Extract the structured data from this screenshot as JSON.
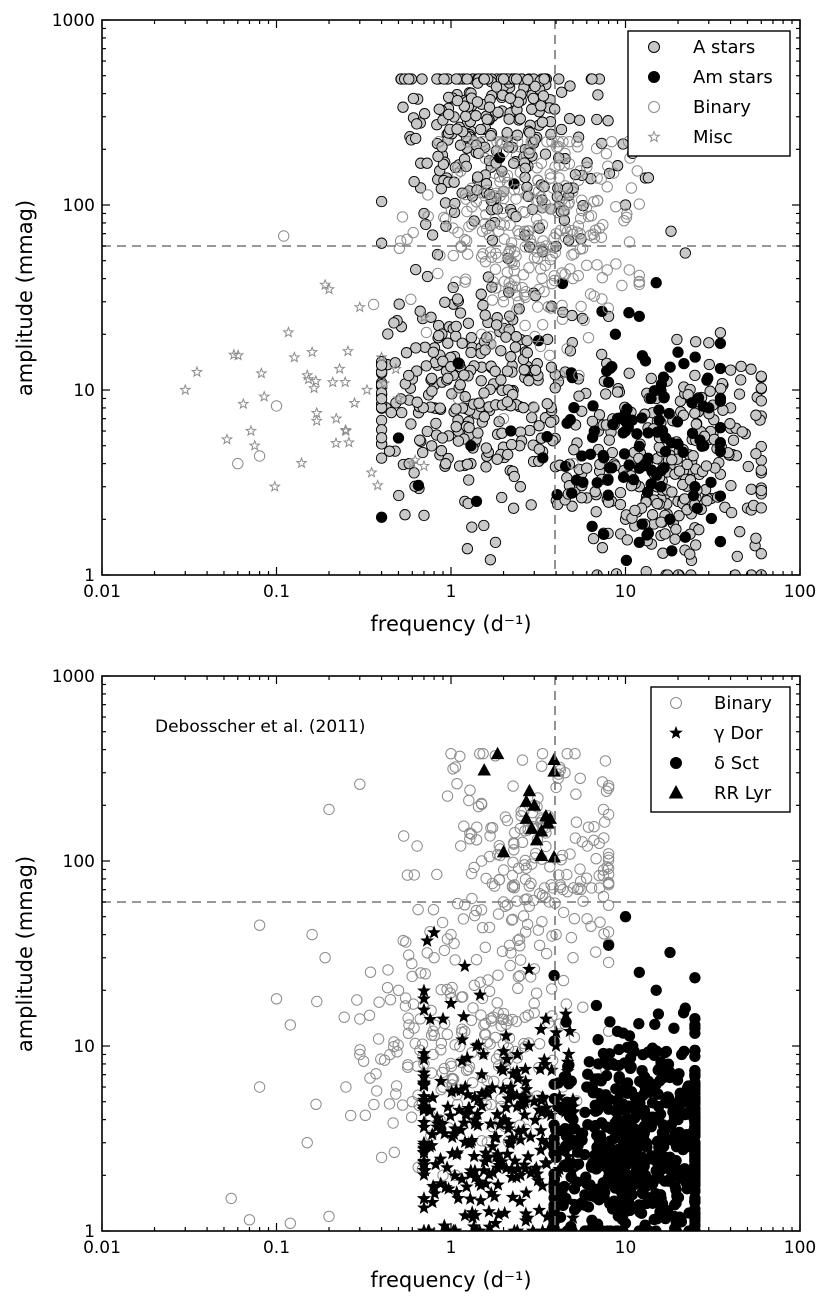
{
  "chart_data": [
    {
      "type": "scatter",
      "xscale": "log",
      "yscale": "log",
      "xlim": [
        0.01,
        100
      ],
      "ylim": [
        1,
        1000
      ],
      "xlabel": "frequency (d⁻¹)",
      "ylabel": "amplitude (mmag)",
      "x_ticks": [
        "0.01",
        "0.1",
        "1",
        "10",
        "100"
      ],
      "y_ticks": [
        "1",
        "10",
        "100",
        "1000"
      ],
      "ref_lines": {
        "vertical_x": 4.07,
        "horizontal_y": 60
      },
      "legend_position": "top-right",
      "annotation": "",
      "series": [
        {
          "name": "A stars",
          "marker": "circle",
          "fill": "#c8c8c8",
          "stroke": "#000000",
          "count_approx": 900,
          "x_range": [
            0.4,
            60
          ],
          "y_range": [
            1,
            480
          ],
          "cluster_centers": [
            [
              1.2,
              10
            ],
            [
              18,
              4
            ],
            [
              2,
              250
            ]
          ],
          "sample_points": [
            [
              2.0,
              480
            ],
            [
              2.0,
              420
            ],
            [
              1.5,
              350
            ],
            [
              1.6,
              300
            ],
            [
              1.3,
              250
            ],
            [
              3.2,
              270
            ],
            [
              1.7,
              160
            ],
            [
              11,
              190
            ],
            [
              13,
              140
            ],
            [
              0.7,
              90
            ],
            [
              10,
              100
            ],
            [
              0.52,
              22
            ],
            [
              0.6,
              12
            ],
            [
              1.0,
              15
            ],
            [
              0.8,
              8
            ],
            [
              1.1,
              6
            ],
            [
              1.3,
              4
            ],
            [
              2.5,
              3
            ],
            [
              0.7,
              2.1
            ],
            [
              1.2,
              2.5
            ],
            [
              1.8,
              1.5
            ],
            [
              12,
              3
            ],
            [
              20,
              2.5
            ],
            [
              35,
              3.5
            ],
            [
              50,
              2.3
            ],
            [
              15,
              9
            ],
            [
              25,
              12
            ],
            [
              8,
              25
            ],
            [
              30,
              18
            ],
            [
              22,
              55
            ],
            [
              40,
              8
            ],
            [
              7,
              6
            ],
            [
              10,
              2
            ],
            [
              25,
              1.8
            ],
            [
              45,
              9.5
            ]
          ]
        },
        {
          "name": "Am stars",
          "marker": "circle",
          "fill": "#000000",
          "stroke": "#000000",
          "count_approx": 130,
          "x_range": [
            0.4,
            35
          ],
          "y_range": [
            1.2,
            180
          ],
          "cluster_centers": [
            [
              14,
              5
            ]
          ],
          "sample_points": [
            [
              1.9,
              180
            ],
            [
              2.3,
              130
            ],
            [
              0.4,
              2.05
            ],
            [
              0.65,
              3.05
            ],
            [
              1.3,
              5
            ],
            [
              2.2,
              6
            ],
            [
              1.1,
              14
            ],
            [
              12,
              25
            ],
            [
              15,
              38
            ],
            [
              20,
              16
            ],
            [
              8,
              11
            ],
            [
              10,
              6
            ],
            [
              13,
              4
            ],
            [
              16,
              3
            ],
            [
              18,
              2
            ],
            [
              22,
              1.6
            ],
            [
              9,
              7
            ],
            [
              14,
              9
            ],
            [
              17,
              5.5
            ],
            [
              25,
              3
            ],
            [
              30,
              8
            ],
            [
              12,
              1.5
            ],
            [
              1.4,
              2.5
            ],
            [
              0.5,
              5.5
            ]
          ]
        },
        {
          "name": "Binary",
          "marker": "circle",
          "fill": "none",
          "stroke": "#8c8c8c",
          "count_approx": 300,
          "x_range": [
            0.06,
            12
          ],
          "y_range": [
            2,
            220
          ],
          "cluster_centers": [
            [
              3,
              80
            ]
          ],
          "sample_points": [
            [
              0.11,
              68
            ],
            [
              0.1,
              8.2
            ],
            [
              0.06,
              4
            ],
            [
              0.08,
              4.4
            ],
            [
              0.36,
              29
            ],
            [
              1.2,
              65
            ],
            [
              2.5,
              150
            ],
            [
              3.0,
              120
            ],
            [
              4.5,
              190
            ],
            [
              4,
              70
            ],
            [
              3.5,
              60
            ],
            [
              5,
              40
            ],
            [
              2,
              30
            ],
            [
              1.5,
              20
            ],
            [
              4.2,
              12
            ],
            [
              3,
              8
            ],
            [
              5,
              4
            ],
            [
              1.8,
              45
            ],
            [
              2.8,
              200
            ],
            [
              4.5,
              100
            ],
            [
              6,
              160
            ],
            [
              3.2,
              35
            ],
            [
              1.1,
              9
            ],
            [
              2,
              7
            ]
          ]
        },
        {
          "name": "Misc",
          "marker": "star",
          "fill": "none",
          "stroke": "#8c8c8c",
          "count_approx": 45,
          "x_range": [
            0.03,
            0.7
          ],
          "y_range": [
            3,
            38
          ],
          "cluster_centers": [
            [
              0.2,
              10
            ]
          ],
          "sample_points": [
            [
              0.03,
              10
            ],
            [
              0.035,
              12.5
            ],
            [
              0.052,
              5.4
            ],
            [
              0.057,
              15.5
            ],
            [
              0.075,
              5
            ],
            [
              0.085,
              9.2
            ],
            [
              0.16,
              16
            ],
            [
              0.17,
              7.5
            ],
            [
              0.19,
              37
            ],
            [
              0.2,
              35
            ],
            [
              0.21,
              11
            ],
            [
              0.22,
              7
            ],
            [
              0.25,
              6
            ],
            [
              0.3,
              28
            ],
            [
              0.33,
              10
            ],
            [
              0.38,
              3.05
            ],
            [
              0.15,
              12
            ],
            [
              0.23,
              13
            ],
            [
              0.26,
              5.2
            ],
            [
              0.4,
              15
            ],
            [
              0.5,
              9
            ],
            [
              0.6,
              4
            ],
            [
              0.17,
              6.8
            ],
            [
              0.28,
              8.5
            ]
          ]
        }
      ]
    },
    {
      "type": "scatter",
      "xscale": "log",
      "yscale": "log",
      "xlim": [
        0.01,
        100
      ],
      "ylim": [
        1,
        1000
      ],
      "xlabel": "frequency (d⁻¹)",
      "ylabel": "amplitude (mmag)",
      "x_ticks": [
        "0.01",
        "0.1",
        "1",
        "10",
        "100"
      ],
      "y_ticks": [
        "1",
        "10",
        "100",
        "1000"
      ],
      "ref_lines": {
        "vertical_x": 4.07,
        "horizontal_y": 60
      },
      "legend_position": "top-right",
      "annotation": "Debosscher et al. (2011)",
      "series": [
        {
          "name": "Binary",
          "marker": "circle",
          "fill": "none",
          "stroke": "#8c8c8c",
          "count_approx": 450,
          "x_range": [
            0.05,
            8
          ],
          "y_range": [
            1,
            380
          ],
          "cluster_centers": [
            [
              1.2,
              10
            ],
            [
              3,
              100
            ]
          ],
          "sample_points": [
            [
              0.2,
              190
            ],
            [
              0.3,
              260
            ],
            [
              1.0,
              380
            ],
            [
              0.055,
              1.5
            ],
            [
              0.07,
              1.15
            ],
            [
              0.08,
              6
            ],
            [
              0.08,
              45
            ],
            [
              0.1,
              18
            ],
            [
              0.12,
              13
            ],
            [
              0.16,
              40
            ],
            [
              0.19,
              30
            ],
            [
              0.3,
              9
            ],
            [
              0.5,
              20
            ],
            [
              0.8,
              30
            ],
            [
              1.0,
              40
            ],
            [
              1.5,
              100
            ],
            [
              2.0,
              60
            ],
            [
              2.5,
              150
            ],
            [
              3.0,
              200
            ],
            [
              4.0,
              250
            ],
            [
              4.5,
              300
            ],
            [
              3.5,
              120
            ],
            [
              4,
              40
            ],
            [
              5,
              30
            ],
            [
              0.15,
              3
            ],
            [
              0.2,
              1.2
            ],
            [
              0.4,
              2.5
            ],
            [
              0.6,
              5
            ],
            [
              0.9,
              2
            ],
            [
              0.3,
              14
            ],
            [
              0.25,
              6
            ],
            [
              0.7,
              8
            ],
            [
              1.2,
              12
            ],
            [
              2,
              15
            ],
            [
              5.5,
              280
            ],
            [
              0.12,
              1.1
            ]
          ]
        },
        {
          "name": "γ Dor",
          "marker": "star",
          "fill": "#000000",
          "stroke": "#000000",
          "count_approx": 300,
          "x_range": [
            0.7,
            5
          ],
          "y_range": [
            1,
            45
          ],
          "cluster_centers": [
            [
              1.6,
              3
            ]
          ],
          "sample_points": [
            [
              0.73,
              37
            ],
            [
              0.8,
              41
            ],
            [
              0.75,
              4.5
            ],
            [
              0.9,
              14
            ],
            [
              1.2,
              27
            ],
            [
              1.0,
              17
            ],
            [
              1.5,
              7
            ],
            [
              1.3,
              3
            ],
            [
              2.0,
              4
            ],
            [
              2.5,
              2
            ],
            [
              1.1,
              1.5
            ],
            [
              1.8,
              1.1
            ],
            [
              2.4,
              9
            ],
            [
              2.8,
              26
            ],
            [
              3.5,
              14
            ],
            [
              4.0,
              10
            ],
            [
              4.8,
              12
            ],
            [
              3.0,
              5
            ],
            [
              1.6,
              2.5
            ],
            [
              2.2,
              6
            ],
            [
              0.95,
              2.2
            ],
            [
              1.4,
              10
            ],
            [
              1.7,
              1.6
            ],
            [
              2.6,
              3.5
            ]
          ]
        },
        {
          "name": "δ Sct",
          "marker": "circle",
          "fill": "#000000",
          "stroke": "#000000",
          "count_approx": 650,
          "x_range": [
            3.9,
            25
          ],
          "y_range": [
            1,
            50
          ],
          "cluster_centers": [
            [
              13,
              3
            ]
          ],
          "sample_points": [
            [
              10,
              50
            ],
            [
              18,
              32
            ],
            [
              8,
              35
            ],
            [
              12,
              25
            ],
            [
              15,
              20
            ],
            [
              22,
              16
            ],
            [
              25,
              7
            ],
            [
              9,
              12
            ],
            [
              6,
              6
            ],
            [
              5,
              4
            ],
            [
              4.1,
              4.7
            ],
            [
              4,
              2.5
            ],
            [
              7,
              8
            ],
            [
              11,
              10
            ],
            [
              14,
              6
            ],
            [
              17,
              5
            ],
            [
              20,
              4
            ],
            [
              24,
              3
            ],
            [
              13,
              2
            ],
            [
              16,
              1.5
            ],
            [
              19,
              1.2
            ],
            [
              10,
              1.1
            ],
            [
              6,
              1.8
            ],
            [
              21,
              9
            ],
            [
              8,
              3
            ]
          ]
        },
        {
          "name": "RR Lyr",
          "marker": "triangle",
          "fill": "#000000",
          "stroke": "#000000",
          "count_approx": 18,
          "x_range": [
            1.4,
            3.9
          ],
          "y_range": [
            105,
            380
          ],
          "cluster_centers": [
            [
              2.8,
              160
            ]
          ],
          "sample_points": [
            [
              1.85,
              380
            ],
            [
              1.55,
              310
            ],
            [
              2.7,
              210
            ],
            [
              3.0,
              200
            ],
            [
              2.7,
              170
            ],
            [
              3.5,
              175
            ],
            [
              3.7,
              170
            ],
            [
              3.3,
              145
            ],
            [
              3.1,
              130
            ],
            [
              2.9,
              150
            ],
            [
              2.0,
              112
            ],
            [
              3.3,
              107
            ],
            [
              3.6,
              160
            ]
          ]
        }
      ]
    }
  ]
}
